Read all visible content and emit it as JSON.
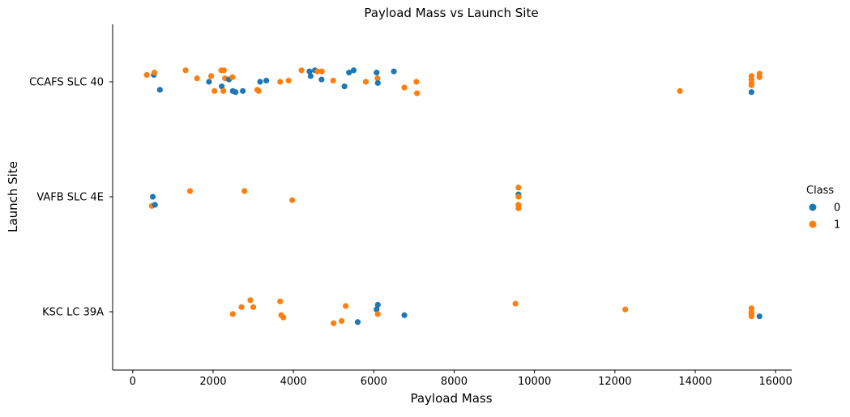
{
  "chart_data": {
    "type": "scatter",
    "title": "Payload Mass vs Launch Site",
    "xlabel": "Payload Mass",
    "ylabel": "Launch Site",
    "xlim": [
      -500,
      16400
    ],
    "x_ticks": [
      0,
      2000,
      4000,
      6000,
      8000,
      10000,
      12000,
      14000,
      16000
    ],
    "x_tick_labels": [
      "0",
      "2000",
      "4000",
      "6000",
      "8000",
      "10000",
      "12000",
      "14000",
      "16000"
    ],
    "categories": [
      "CCAFS SLC 40",
      "VAFB SLC 4E",
      "KSC LC 39A"
    ],
    "legend": {
      "title": "Class",
      "position": "right",
      "entries": [
        "0",
        "1"
      ]
    },
    "colors": {
      "0": "#1f77b4",
      "1": "#ff7f0e"
    },
    "grid": false,
    "points": [
      {
        "site": "CCAFS SLC 40",
        "payload": 350,
        "class": "1",
        "jitter": -0.06
      },
      {
        "site": "CCAFS SLC 40",
        "payload": 525,
        "class": "0",
        "jitter": -0.06
      },
      {
        "site": "CCAFS SLC 40",
        "payload": 540,
        "class": "1",
        "jitter": -0.08
      },
      {
        "site": "CCAFS SLC 40",
        "payload": 677,
        "class": "0",
        "jitter": 0.07
      },
      {
        "site": "CCAFS SLC 40",
        "payload": 1316,
        "class": "1",
        "jitter": -0.1
      },
      {
        "site": "CCAFS SLC 40",
        "payload": 1600,
        "class": "1",
        "jitter": -0.03
      },
      {
        "site": "CCAFS SLC 40",
        "payload": 1898,
        "class": "0",
        "jitter": 0.0
      },
      {
        "site": "CCAFS SLC 40",
        "payload": 1952,
        "class": "1",
        "jitter": -0.05
      },
      {
        "site": "CCAFS SLC 40",
        "payload": 2034,
        "class": "1",
        "jitter": 0.08
      },
      {
        "site": "CCAFS SLC 40",
        "payload": 2205,
        "class": "1",
        "jitter": -0.1
      },
      {
        "site": "CCAFS SLC 40",
        "payload": 2216,
        "class": "0",
        "jitter": 0.04
      },
      {
        "site": "CCAFS SLC 40",
        "payload": 2257,
        "class": "1",
        "jitter": 0.08
      },
      {
        "site": "CCAFS SLC 40",
        "payload": 2270,
        "class": "1",
        "jitter": -0.1
      },
      {
        "site": "CCAFS SLC 40",
        "payload": 2296,
        "class": "1",
        "jitter": -0.03
      },
      {
        "site": "CCAFS SLC 40",
        "payload": 2395,
        "class": "0",
        "jitter": -0.02
      },
      {
        "site": "CCAFS SLC 40",
        "payload": 2482,
        "class": "1",
        "jitter": -0.04
      },
      {
        "site": "CCAFS SLC 40",
        "payload": 2490,
        "class": "0",
        "jitter": 0.08
      },
      {
        "site": "CCAFS SLC 40",
        "payload": 2560,
        "class": "0",
        "jitter": 0.09
      },
      {
        "site": "CCAFS SLC 40",
        "payload": 2740,
        "class": "0",
        "jitter": 0.08
      },
      {
        "site": "CCAFS SLC 40",
        "payload": 3100,
        "class": "1",
        "jitter": 0.07
      },
      {
        "site": "CCAFS SLC 40",
        "payload": 3136,
        "class": "1",
        "jitter": 0.08
      },
      {
        "site": "CCAFS SLC 40",
        "payload": 3170,
        "class": "0",
        "jitter": 0.0
      },
      {
        "site": "CCAFS SLC 40",
        "payload": 3325,
        "class": "0",
        "jitter": -0.01
      },
      {
        "site": "CCAFS SLC 40",
        "payload": 3669,
        "class": "1",
        "jitter": 0.0
      },
      {
        "site": "CCAFS SLC 40",
        "payload": 3880,
        "class": "1",
        "jitter": -0.01
      },
      {
        "site": "CCAFS SLC 40",
        "payload": 4200,
        "class": "1",
        "jitter": -0.1
      },
      {
        "site": "CCAFS SLC 40",
        "payload": 4400,
        "class": "0",
        "jitter": -0.09
      },
      {
        "site": "CCAFS SLC 40",
        "payload": 4428,
        "class": "0",
        "jitter": -0.05
      },
      {
        "site": "CCAFS SLC 40",
        "payload": 4535,
        "class": "0",
        "jitter": -0.1
      },
      {
        "site": "CCAFS SLC 40",
        "payload": 4600,
        "class": "1",
        "jitter": -0.09
      },
      {
        "site": "CCAFS SLC 40",
        "payload": 4707,
        "class": "1",
        "jitter": -0.09
      },
      {
        "site": "CCAFS SLC 40",
        "payload": 4700,
        "class": "0",
        "jitter": -0.02
      },
      {
        "site": "CCAFS SLC 40",
        "payload": 4990,
        "class": "1",
        "jitter": -0.01
      },
      {
        "site": "CCAFS SLC 40",
        "payload": 5271,
        "class": "0",
        "jitter": 0.04
      },
      {
        "site": "CCAFS SLC 40",
        "payload": 5384,
        "class": "0",
        "jitter": -0.08
      },
      {
        "site": "CCAFS SLC 40",
        "payload": 5500,
        "class": "0",
        "jitter": -0.1
      },
      {
        "site": "CCAFS SLC 40",
        "payload": 5800,
        "class": "1",
        "jitter": 0.0
      },
      {
        "site": "CCAFS SLC 40",
        "payload": 6070,
        "class": "0",
        "jitter": -0.08
      },
      {
        "site": "CCAFS SLC 40",
        "payload": 6092,
        "class": "1",
        "jitter": -0.03
      },
      {
        "site": "CCAFS SLC 40",
        "payload": 6100,
        "class": "0",
        "jitter": 0.01
      },
      {
        "site": "CCAFS SLC 40",
        "payload": 6500,
        "class": "0",
        "jitter": -0.09
      },
      {
        "site": "CCAFS SLC 40",
        "payload": 6761,
        "class": "1",
        "jitter": 0.05
      },
      {
        "site": "CCAFS SLC 40",
        "payload": 7060,
        "class": "1",
        "jitter": 0.0
      },
      {
        "site": "CCAFS SLC 40",
        "payload": 7076,
        "class": "1",
        "jitter": 0.1
      },
      {
        "site": "CCAFS SLC 40",
        "payload": 13620,
        "class": "1",
        "jitter": 0.08
      },
      {
        "site": "CCAFS SLC 40",
        "payload": 15400,
        "class": "1",
        "jitter": -0.05
      },
      {
        "site": "CCAFS SLC 40",
        "payload": 15400,
        "class": "1",
        "jitter": -0.02
      },
      {
        "site": "CCAFS SLC 40",
        "payload": 15400,
        "class": "1",
        "jitter": 0.01
      },
      {
        "site": "CCAFS SLC 40",
        "payload": 15400,
        "class": "1",
        "jitter": 0.03
      },
      {
        "site": "CCAFS SLC 40",
        "payload": 15400,
        "class": "0",
        "jitter": 0.09
      },
      {
        "site": "CCAFS SLC 40",
        "payload": 15600,
        "class": "1",
        "jitter": -0.07
      },
      {
        "site": "CCAFS SLC 40",
        "payload": 15600,
        "class": "1",
        "jitter": -0.04
      },
      {
        "site": "VAFB SLC 4E",
        "payload": 475,
        "class": "1",
        "jitter": 0.08
      },
      {
        "site": "VAFB SLC 4E",
        "payload": 500,
        "class": "0",
        "jitter": 0.0
      },
      {
        "site": "VAFB SLC 4E",
        "payload": 553,
        "class": "0",
        "jitter": 0.07
      },
      {
        "site": "VAFB SLC 4E",
        "payload": 1425,
        "class": "1",
        "jitter": -0.05
      },
      {
        "site": "VAFB SLC 4E",
        "payload": 2780,
        "class": "1",
        "jitter": -0.05
      },
      {
        "site": "VAFB SLC 4E",
        "payload": 3970,
        "class": "1",
        "jitter": 0.03
      },
      {
        "site": "VAFB SLC 4E",
        "payload": 9600,
        "class": "1",
        "jitter": -0.08
      },
      {
        "site": "VAFB SLC 4E",
        "payload": 9600,
        "class": "0",
        "jitter": -0.02
      },
      {
        "site": "VAFB SLC 4E",
        "payload": 9600,
        "class": "1",
        "jitter": 0.0
      },
      {
        "site": "VAFB SLC 4E",
        "payload": 9600,
        "class": "1",
        "jitter": 0.07
      },
      {
        "site": "VAFB SLC 4E",
        "payload": 9600,
        "class": "1",
        "jitter": 0.1
      },
      {
        "site": "KSC LC 39A",
        "payload": 2490,
        "class": "1",
        "jitter": 0.02
      },
      {
        "site": "KSC LC 39A",
        "payload": 2708,
        "class": "1",
        "jitter": -0.04
      },
      {
        "site": "KSC LC 39A",
        "payload": 2928,
        "class": "1",
        "jitter": -0.1
      },
      {
        "site": "KSC LC 39A",
        "payload": 3000,
        "class": "1",
        "jitter": -0.04
      },
      {
        "site": "KSC LC 39A",
        "payload": 3669,
        "class": "1",
        "jitter": -0.09
      },
      {
        "site": "KSC LC 39A",
        "payload": 3696,
        "class": "1",
        "jitter": 0.03
      },
      {
        "site": "KSC LC 39A",
        "payload": 3750,
        "class": "1",
        "jitter": 0.05
      },
      {
        "site": "KSC LC 39A",
        "payload": 5000,
        "class": "1",
        "jitter": 0.1
      },
      {
        "site": "KSC LC 39A",
        "payload": 5200,
        "class": "1",
        "jitter": 0.08
      },
      {
        "site": "KSC LC 39A",
        "payload": 5300,
        "class": "1",
        "jitter": -0.05
      },
      {
        "site": "KSC LC 39A",
        "payload": 5600,
        "class": "0",
        "jitter": 0.09
      },
      {
        "site": "KSC LC 39A",
        "payload": 6070,
        "class": "0",
        "jitter": -0.02
      },
      {
        "site": "KSC LC 39A",
        "payload": 6100,
        "class": "0",
        "jitter": -0.06
      },
      {
        "site": "KSC LC 39A",
        "payload": 6100,
        "class": "1",
        "jitter": 0.02
      },
      {
        "site": "KSC LC 39A",
        "payload": 6761,
        "class": "0",
        "jitter": 0.03
      },
      {
        "site": "KSC LC 39A",
        "payload": 9525,
        "class": "1",
        "jitter": -0.07
      },
      {
        "site": "KSC LC 39A",
        "payload": 12259,
        "class": "1",
        "jitter": -0.02
      },
      {
        "site": "KSC LC 39A",
        "payload": 15400,
        "class": "1",
        "jitter": -0.03
      },
      {
        "site": "KSC LC 39A",
        "payload": 15400,
        "class": "1",
        "jitter": 0.0
      },
      {
        "site": "KSC LC 39A",
        "payload": 15400,
        "class": "1",
        "jitter": 0.02
      },
      {
        "site": "KSC LC 39A",
        "payload": 15400,
        "class": "1",
        "jitter": 0.04
      },
      {
        "site": "KSC LC 39A",
        "payload": 15600,
        "class": "0",
        "jitter": 0.04
      }
    ]
  }
}
